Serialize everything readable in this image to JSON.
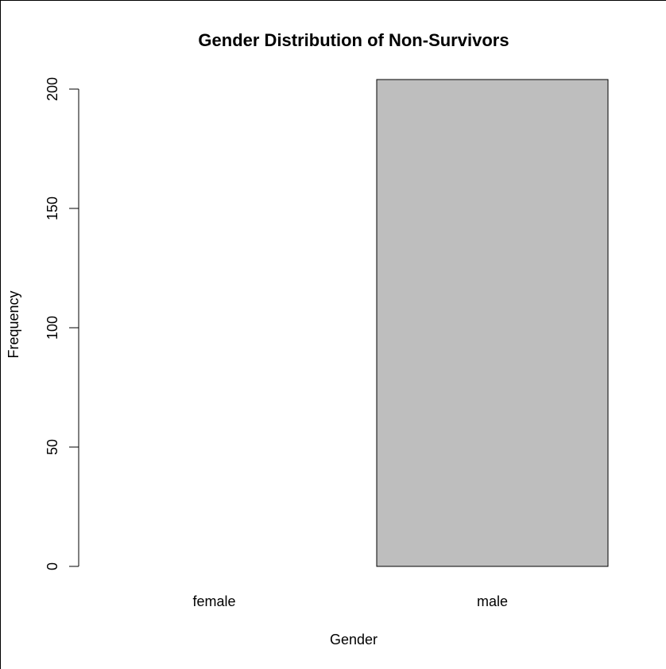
{
  "chart_data": {
    "type": "bar",
    "title": "Gender Distribution of Non-Survivors",
    "x_label": "Gender",
    "y_label": "Frequency",
    "categories": [
      "female",
      "male"
    ],
    "values": [
      0,
      204
    ],
    "color": "#bebebe",
    "ylim": [
      0,
      204
    ],
    "yticks": [
      0,
      50,
      100,
      150,
      200
    ]
  }
}
